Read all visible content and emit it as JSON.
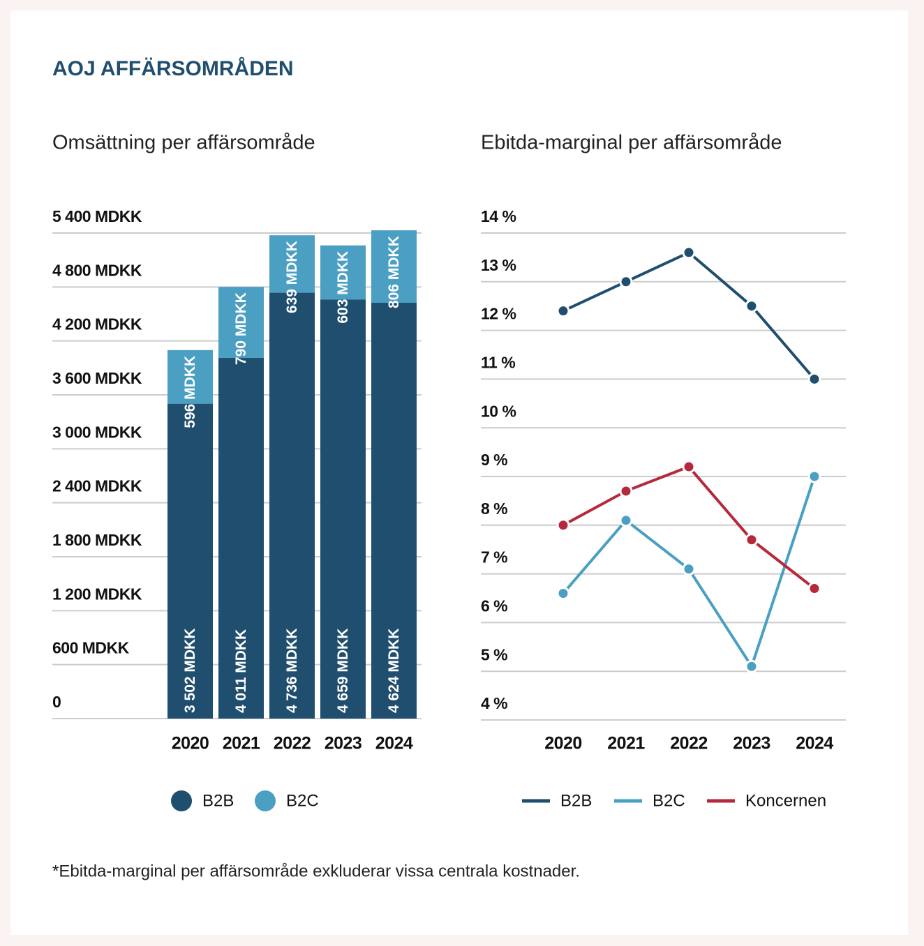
{
  "title": "AOJ AFFÄRSOMRÅDEN",
  "footnote": "*Ebitda-marginal per affärsområde exkluderar vissa centrala kostnader.",
  "chart_data": [
    {
      "type": "bar",
      "stacked": true,
      "title": "Omsättning per affärsområde",
      "categories": [
        "2020",
        "2021",
        "2022",
        "2023",
        "2024"
      ],
      "series": [
        {
          "name": "B2B",
          "color": "#1f4e6e",
          "values": [
            3502,
            4011,
            4736,
            4659,
            4624
          ],
          "value_labels": [
            "3 502 MDKK",
            "4 011 MDKK",
            "4 736 MDKK",
            "4 659 MDKK",
            "4 624 MDKK"
          ]
        },
        {
          "name": "B2C",
          "color": "#4a9fc2",
          "values": [
            596,
            790,
            639,
            603,
            806
          ],
          "value_labels": [
            "596 MDKK",
            "790 MDKK",
            "639 MDKK",
            "603 MDKK",
            "806 MDKK"
          ]
        }
      ],
      "ylim": [
        0,
        5400
      ],
      "yticks": [
        0,
        {
          "value": 600,
          "label": "600 MDKK"
        },
        {
          "value": 1200,
          "label": "1 200 MDKK"
        },
        {
          "value": 1800,
          "label": "1 800 MDKK"
        },
        {
          "value": 2400,
          "label": "2 400 MDKK"
        },
        {
          "value": 3000,
          "label": "3 000 MDKK"
        },
        {
          "value": 3600,
          "label": "3 600 MDKK"
        },
        {
          "value": 4200,
          "label": "4 200 MDKK"
        },
        {
          "value": 4800,
          "label": "4 800 MDKK"
        },
        {
          "value": 5400,
          "label": "5 400 MDKK"
        }
      ],
      "grid": true,
      "legend": "bottom"
    },
    {
      "type": "line",
      "title": "Ebitda-marginal per affärsområde",
      "categories": [
        "2020",
        "2021",
        "2022",
        "2023",
        "2024"
      ],
      "series": [
        {
          "name": "B2B",
          "color": "#1f4e6e",
          "values": [
            12.4,
            13.0,
            13.6,
            12.5,
            11.0
          ]
        },
        {
          "name": "B2C",
          "color": "#4a9fc2",
          "values": [
            6.6,
            8.1,
            7.1,
            5.1,
            9.0
          ]
        },
        {
          "name": "Koncernen",
          "color": "#b5293a",
          "values": [
            8.0,
            8.7,
            9.2,
            7.7,
            6.7
          ]
        }
      ],
      "ylim": [
        4,
        14
      ],
      "yticks": [
        {
          "value": 4,
          "label": "4 %"
        },
        {
          "value": 5,
          "label": "5 %"
        },
        {
          "value": 6,
          "label": "6 %"
        },
        {
          "value": 7,
          "label": "7 %"
        },
        {
          "value": 8,
          "label": "8 %"
        },
        {
          "value": 9,
          "label": "9 %"
        },
        {
          "value": 10,
          "label": "10 %"
        },
        {
          "value": 11,
          "label": "11 %"
        },
        {
          "value": 12,
          "label": "12 %"
        },
        {
          "value": 13,
          "label": "13 %"
        },
        {
          "value": 14,
          "label": "14 %"
        }
      ],
      "grid": true,
      "legend": "bottom"
    }
  ]
}
